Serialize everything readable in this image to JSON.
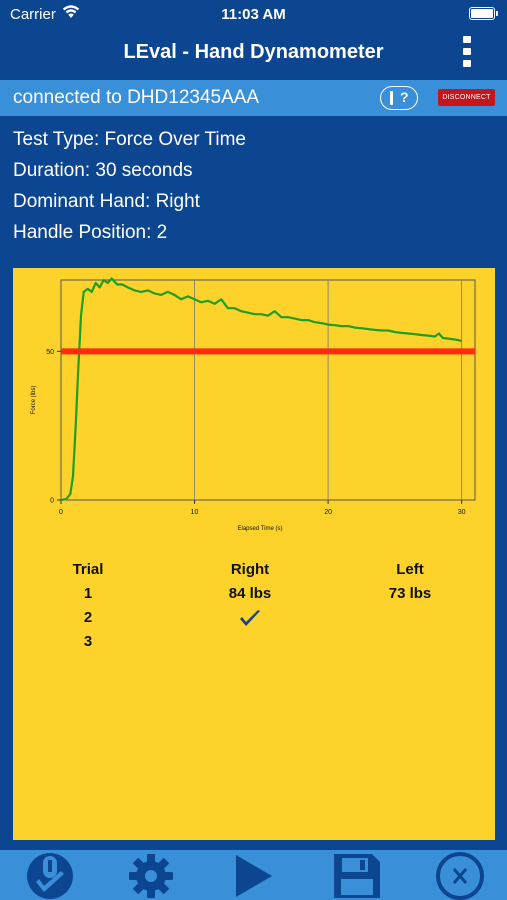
{
  "status_bar": {
    "carrier": "Carrier",
    "time": "11:03 AM"
  },
  "nav": {
    "title": "LEval - Hand Dynamometer"
  },
  "connection": {
    "status": "connected to DHD12345AAA",
    "help_label": "?",
    "disconnect_label": "DISCONNECT"
  },
  "test_info": {
    "test_type": "Test Type: Force Over Time",
    "duration": "Duration: 30 seconds",
    "dominant_hand": "Dominant Hand: Right",
    "handle_position": "Handle Position: 2"
  },
  "chart_data": {
    "type": "line",
    "xlabel": "Elapsed Time (s)",
    "ylabel": "Force (lbs)",
    "xlim": [
      0,
      31
    ],
    "ylim": [
      0,
      74
    ],
    "x_ticks": [
      0,
      10,
      20,
      30
    ],
    "y_ticks": [
      0,
      50
    ],
    "grid": "vertical",
    "threshold": {
      "value": 50,
      "color": "#ff2a10"
    },
    "series": [
      {
        "color": "#1f9e1f",
        "points": [
          [
            0,
            0
          ],
          [
            0.4,
            0.3
          ],
          [
            0.7,
            2
          ],
          [
            0.9,
            8
          ],
          [
            1.1,
            25
          ],
          [
            1.3,
            45
          ],
          [
            1.5,
            62
          ],
          [
            1.7,
            70
          ],
          [
            2,
            71
          ],
          [
            2.3,
            70
          ],
          [
            2.6,
            73
          ],
          [
            2.9,
            71.5
          ],
          [
            3.2,
            74
          ],
          [
            3.5,
            73
          ],
          [
            3.8,
            74.5
          ],
          [
            4.2,
            72.5
          ],
          [
            4.6,
            72.5
          ],
          [
            5,
            71.5
          ],
          [
            5.5,
            70.5
          ],
          [
            6,
            70
          ],
          [
            6.5,
            70.5
          ],
          [
            7,
            69.5
          ],
          [
            7.5,
            69
          ],
          [
            8,
            70
          ],
          [
            8.5,
            69
          ],
          [
            9,
            67.5
          ],
          [
            9.5,
            68.5
          ],
          [
            10,
            67.5
          ],
          [
            10.5,
            66.5
          ],
          [
            11,
            67
          ],
          [
            11.5,
            66
          ],
          [
            12,
            67.5
          ],
          [
            12.5,
            64.5
          ],
          [
            13,
            64.5
          ],
          [
            13.5,
            63.5
          ],
          [
            14,
            63
          ],
          [
            14.5,
            62.5
          ],
          [
            15,
            62.5
          ],
          [
            15.5,
            62
          ],
          [
            16,
            63.5
          ],
          [
            16.5,
            61.5
          ],
          [
            17,
            61.5
          ],
          [
            17.5,
            61
          ],
          [
            18,
            60.5
          ],
          [
            18.5,
            60.5
          ],
          [
            19,
            59.8
          ],
          [
            19.5,
            59.5
          ],
          [
            20,
            59
          ],
          [
            20.5,
            58.8
          ],
          [
            21,
            58.5
          ],
          [
            21.5,
            58.5
          ],
          [
            22,
            58
          ],
          [
            22.5,
            57.8
          ],
          [
            23,
            57.5
          ],
          [
            23.5,
            57.2
          ],
          [
            24,
            57
          ],
          [
            24.5,
            57
          ],
          [
            25,
            56.5
          ],
          [
            25.5,
            56.2
          ],
          [
            26,
            56
          ],
          [
            26.5,
            55.8
          ],
          [
            27,
            55.5
          ],
          [
            27.5,
            55.3
          ],
          [
            28,
            55
          ],
          [
            28.3,
            56
          ],
          [
            28.6,
            54.5
          ],
          [
            29,
            54.3
          ],
          [
            29.5,
            54
          ],
          [
            30,
            53.5
          ]
        ]
      }
    ]
  },
  "trials": {
    "headers": {
      "trial": "Trial",
      "right": "Right",
      "left": "Left"
    },
    "rows": [
      {
        "trial": "1",
        "right": "84 lbs",
        "left": "73 lbs"
      },
      {
        "trial": "2"
      },
      {
        "trial": "3"
      }
    ],
    "in_progress_icon": "checkmark-icon"
  },
  "tab_bar": [
    "dynamometer-check-icon",
    "gear-icon",
    "play-icon",
    "save-icon",
    "close-circle-icon"
  ]
}
